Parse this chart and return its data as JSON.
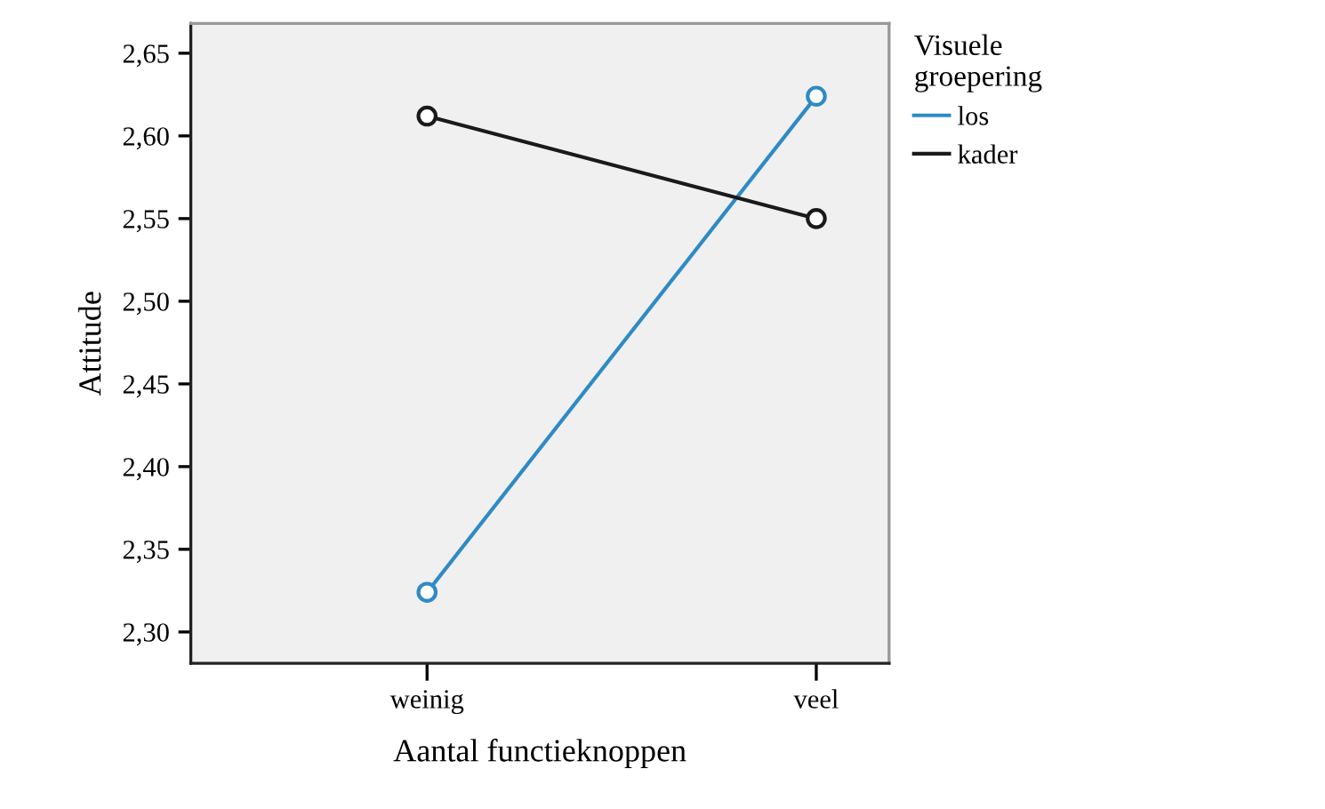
{
  "chart_data": {
    "type": "line",
    "xlabel": "Aantal functieknoppen",
    "ylabel": "Attitude",
    "legend_title": "Visuele\ngroepering",
    "categories": [
      "weinig",
      "veel"
    ],
    "series": [
      {
        "name": "los",
        "color": "#2f8ac4",
        "values": [
          2.324,
          2.624
        ]
      },
      {
        "name": "kader",
        "color": "#1a1a1a",
        "values": [
          2.612,
          2.55
        ]
      }
    ],
    "ylim": [
      2.281,
      2.668
    ],
    "yticks": [
      {
        "value": 2.3,
        "label": "2,30"
      },
      {
        "value": 2.35,
        "label": "2,35"
      },
      {
        "value": 2.4,
        "label": "2,40"
      },
      {
        "value": 2.45,
        "label": "2,45"
      },
      {
        "value": 2.5,
        "label": "2,50"
      },
      {
        "value": 2.55,
        "label": "2,55"
      },
      {
        "value": 2.6,
        "label": "2,60"
      },
      {
        "value": 2.65,
        "label": "2,65"
      }
    ],
    "marker": "circle",
    "line_style": "solid",
    "grid": false,
    "legend": "right"
  }
}
